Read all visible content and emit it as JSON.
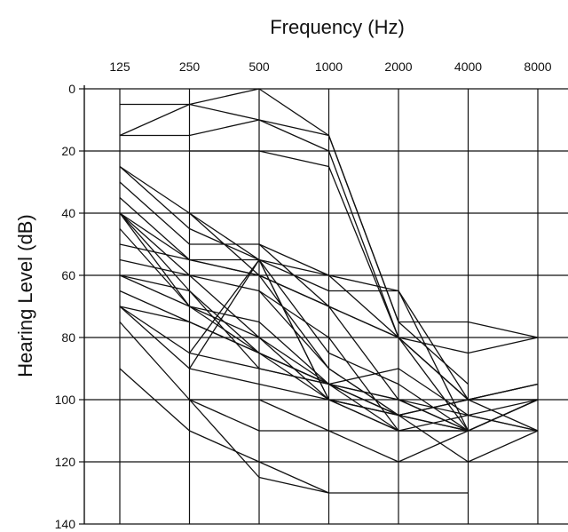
{
  "chart_data": {
    "type": "line",
    "title": "",
    "xlabel": "Frequency (Hz)",
    "ylabel": "Hearing Level (dB)",
    "x_position": "top",
    "y_inverted": true,
    "categories": [
      "125",
      "250",
      "500",
      "1000",
      "2000",
      "4000",
      "8000"
    ],
    "ylim": [
      0,
      140
    ],
    "yticks": [
      "0",
      "20",
      "40",
      "60",
      "80",
      "100",
      "120",
      "140"
    ],
    "grid": true,
    "line_color": "#111111",
    "series": [
      {
        "values": [
          5,
          5,
          0,
          15,
          75,
          75,
          80
        ]
      },
      {
        "values": [
          15,
          5,
          10,
          20,
          80,
          85,
          80
        ]
      },
      {
        "values": [
          15,
          15,
          10,
          15,
          75,
          95,
          null
        ]
      },
      {
        "values": [
          null,
          20,
          20,
          25,
          80,
          100,
          null
        ]
      },
      {
        "values": [
          25,
          40,
          55,
          60,
          65,
          110,
          110
        ]
      },
      {
        "values": [
          25,
          45,
          55,
          65,
          65,
          100,
          95
        ]
      },
      {
        "values": [
          30,
          50,
          50,
          70,
          100,
          105,
          100
        ]
      },
      {
        "values": [
          35,
          55,
          60,
          70,
          80,
          100,
          100
        ]
      },
      {
        "values": [
          40,
          55,
          60,
          70,
          80,
          100,
          95
        ]
      },
      {
        "values": [
          40,
          60,
          80,
          95,
          90,
          105,
          110
        ]
      },
      {
        "values": [
          40,
          65,
          85,
          95,
          100,
          110,
          100
        ]
      },
      {
        "values": [
          40,
          70,
          85,
          100,
          105,
          100,
          110
        ]
      },
      {
        "values": [
          45,
          70,
          75,
          95,
          105,
          110,
          null
        ]
      },
      {
        "values": [
          50,
          55,
          55,
          85,
          95,
          110,
          null
        ]
      },
      {
        "values": [
          55,
          60,
          65,
          90,
          105,
          100,
          95
        ]
      },
      {
        "values": [
          60,
          65,
          90,
          95,
          110,
          110,
          null
        ]
      },
      {
        "values": [
          60,
          70,
          80,
          100,
          110,
          105,
          110
        ]
      },
      {
        "values": [
          65,
          75,
          85,
          95,
          105,
          100,
          100
        ]
      },
      {
        "values": [
          70,
          75,
          85,
          95,
          100,
          110,
          100
        ]
      },
      {
        "values": [
          70,
          85,
          90,
          95,
          105,
          110,
          null
        ]
      },
      {
        "values": [
          70,
          90,
          55,
          100,
          105,
          120,
          110
        ]
      },
      {
        "values": [
          75,
          100,
          100,
          110,
          110,
          110,
          100
        ]
      },
      {
        "values": [
          90,
          110,
          120,
          130,
          130,
          130,
          null
        ]
      },
      {
        "values": [
          null,
          100,
          110,
          110,
          120,
          110,
          null
        ]
      },
      {
        "values": [
          null,
          90,
          95,
          100,
          110,
          110,
          null
        ]
      },
      {
        "values": [
          null,
          null,
          50,
          60,
          80,
          110,
          null
        ]
      },
      {
        "values": [
          null,
          85,
          55,
          100,
          105,
          110,
          null
        ]
      },
      {
        "values": [
          null,
          null,
          65,
          80,
          110,
          null,
          null
        ]
      },
      {
        "values": [
          null,
          40,
          60,
          90,
          105,
          null,
          null
        ]
      },
      {
        "values": [
          null,
          100,
          125,
          130,
          null,
          null,
          null
        ]
      }
    ]
  }
}
